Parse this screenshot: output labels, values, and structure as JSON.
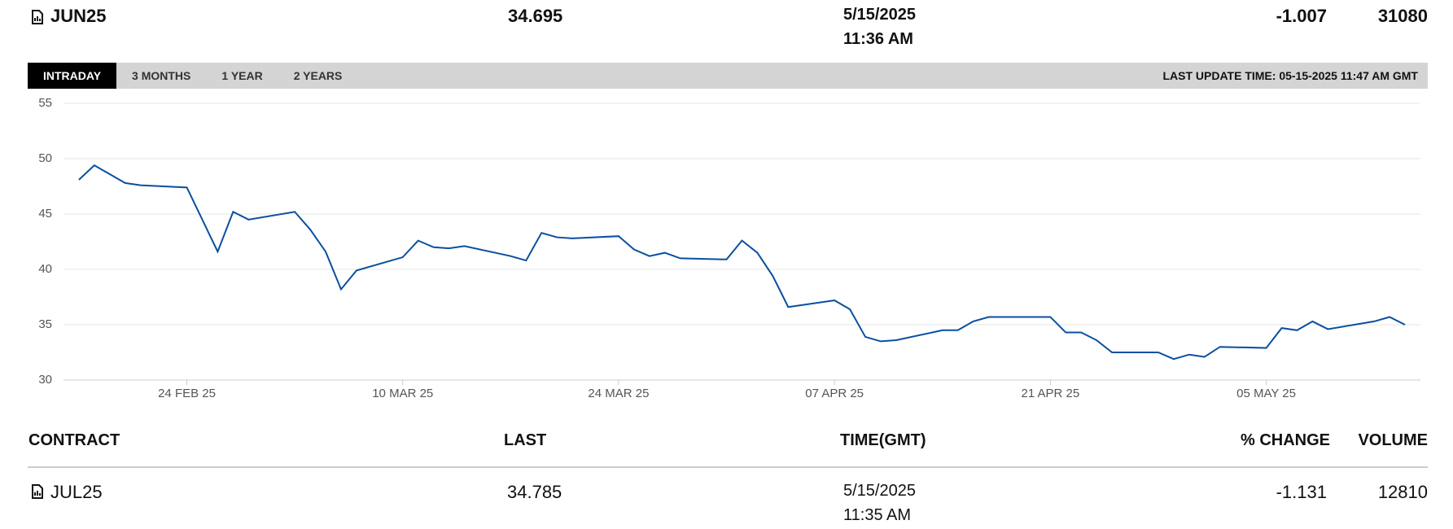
{
  "header": {
    "contract": "JUN25",
    "last": "34.695",
    "date": "5/15/2025",
    "time": "11:36 AM",
    "change": "-1.007",
    "volume": "31080"
  },
  "tabs": [
    "INTRADAY",
    "3 MONTHS",
    "1 YEAR",
    "2 YEARS"
  ],
  "last_update": "LAST UPDATE TIME: 05-15-2025 11:47 AM GMT",
  "chart_data": {
    "type": "line",
    "color": "#0a4fa0",
    "grid": true,
    "x": [
      "2025-02-17",
      "2025-02-18",
      "2025-02-19",
      "2025-02-20",
      "2025-02-21",
      "2025-02-24",
      "2025-02-26",
      "2025-02-27",
      "2025-02-28",
      "2025-03-03",
      "2025-03-04",
      "2025-03-05",
      "2025-03-06",
      "2025-03-07",
      "2025-03-10",
      "2025-03-11",
      "2025-03-12",
      "2025-03-13",
      "2025-03-14",
      "2025-03-17",
      "2025-03-18",
      "2025-03-19",
      "2025-03-20",
      "2025-03-21",
      "2025-03-24",
      "2025-03-25",
      "2025-03-26",
      "2025-03-27",
      "2025-03-28",
      "2025-03-31",
      "2025-04-01",
      "2025-04-02",
      "2025-04-03",
      "2025-04-04",
      "2025-04-07",
      "2025-04-08",
      "2025-04-09",
      "2025-04-10",
      "2025-04-11",
      "2025-04-14",
      "2025-04-15",
      "2025-04-16",
      "2025-04-17",
      "2025-04-21",
      "2025-04-22",
      "2025-04-23",
      "2025-04-24",
      "2025-04-25",
      "2025-04-28",
      "2025-04-29",
      "2025-04-30",
      "2025-05-01",
      "2025-05-02",
      "2025-05-05",
      "2025-05-06",
      "2025-05-07",
      "2025-05-08",
      "2025-05-09",
      "2025-05-12",
      "2025-05-13",
      "2025-05-14"
    ],
    "values": [
      48.1,
      49.4,
      48.6,
      47.8,
      47.6,
      47.4,
      41.6,
      45.2,
      44.5,
      45.2,
      43.6,
      41.6,
      38.2,
      39.9,
      41.1,
      42.6,
      42.0,
      41.9,
      42.1,
      41.2,
      40.8,
      43.3,
      42.9,
      42.8,
      43.0,
      41.8,
      41.2,
      41.5,
      41.0,
      40.9,
      42.6,
      41.5,
      39.4,
      36.6,
      37.2,
      36.4,
      33.9,
      33.5,
      33.6,
      34.5,
      34.5,
      35.3,
      35.7,
      35.7,
      34.3,
      34.3,
      33.6,
      32.5,
      32.5,
      31.9,
      32.3,
      32.1,
      33.0,
      32.9,
      34.7,
      34.5,
      35.3,
      34.6,
      35.3,
      35.7,
      35.0
    ],
    "xlim": [
      "2025-02-16",
      "2025-05-15"
    ],
    "xticks": [
      {
        "value": "2025-02-24",
        "label": "24 FEB 25"
      },
      {
        "value": "2025-03-10",
        "label": "10 MAR 25"
      },
      {
        "value": "2025-03-24",
        "label": "24 MAR 25"
      },
      {
        "value": "2025-04-07",
        "label": "07 APR 25"
      },
      {
        "value": "2025-04-21",
        "label": "21 APR 25"
      },
      {
        "value": "2025-05-05",
        "label": "05 MAY 25"
      }
    ],
    "ylim": [
      30,
      55
    ],
    "yticks": [
      30,
      35,
      40,
      45,
      50,
      55
    ]
  },
  "table": {
    "columns": [
      "CONTRACT",
      "LAST",
      "TIME(GMT)",
      "% CHANGE",
      "VOLUME"
    ],
    "rows": [
      [
        "JUL25",
        "34.785",
        "5/15/2025",
        "11:35 AM",
        "-1.131",
        "12810"
      ]
    ]
  }
}
